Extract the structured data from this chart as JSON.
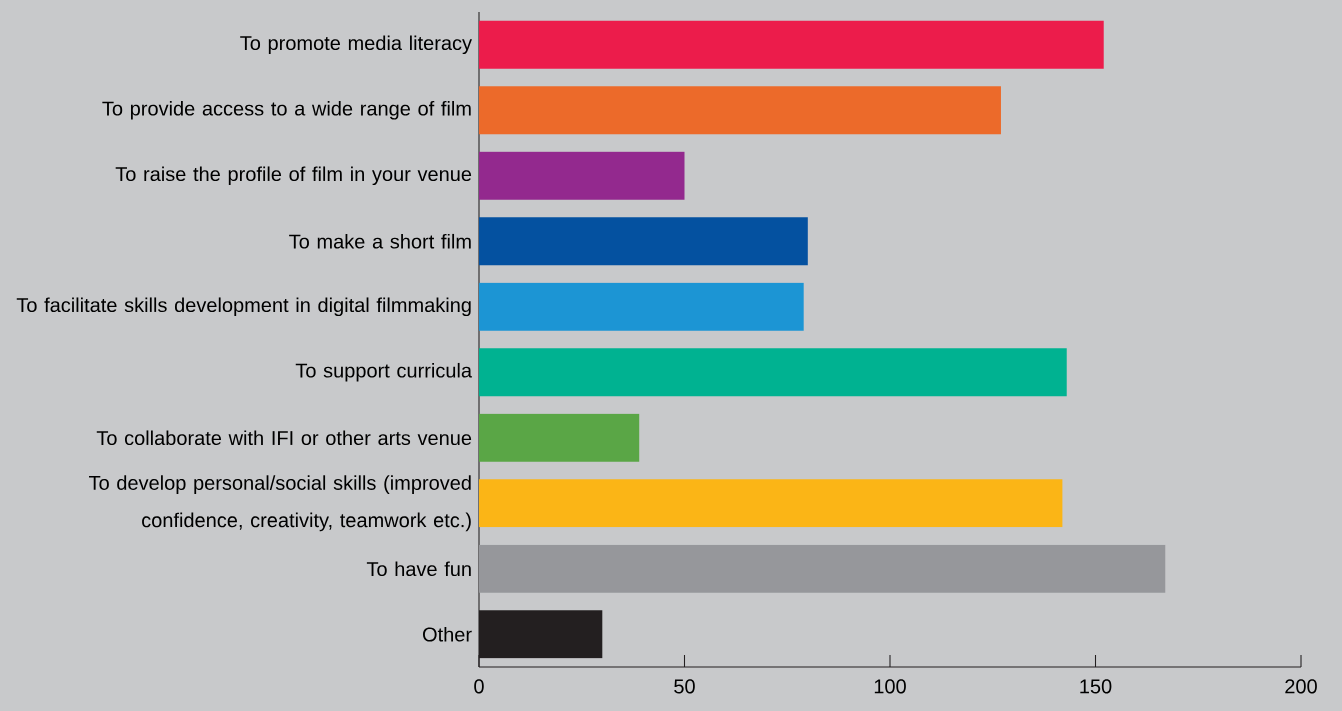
{
  "chart_data": {
    "type": "bar",
    "orientation": "horizontal",
    "categories": [
      "To promote media literacy",
      "To provide access to a wide range of film",
      "To raise the profile of film in your venue",
      "To make a short film",
      "To facilitate skills development in digital filmmaking",
      "To support curricula",
      "To collaborate with IFI or other arts venue",
      "To develop personal/social skills (improved confidence, creativity, teamwork etc.)",
      "To have fun",
      "Other"
    ],
    "values": [
      152,
      127,
      50,
      80,
      79,
      143,
      39,
      142,
      167,
      30
    ],
    "colors": [
      "#ec1c4b",
      "#ec6a2a",
      "#93298e",
      "#0451a0",
      "#1c95d4",
      "#00b291",
      "#5aa646",
      "#fbb516",
      "#96979b",
      "#231f20"
    ],
    "xlim": [
      0,
      200
    ],
    "xticks": [
      0,
      50,
      100,
      150,
      200
    ]
  }
}
